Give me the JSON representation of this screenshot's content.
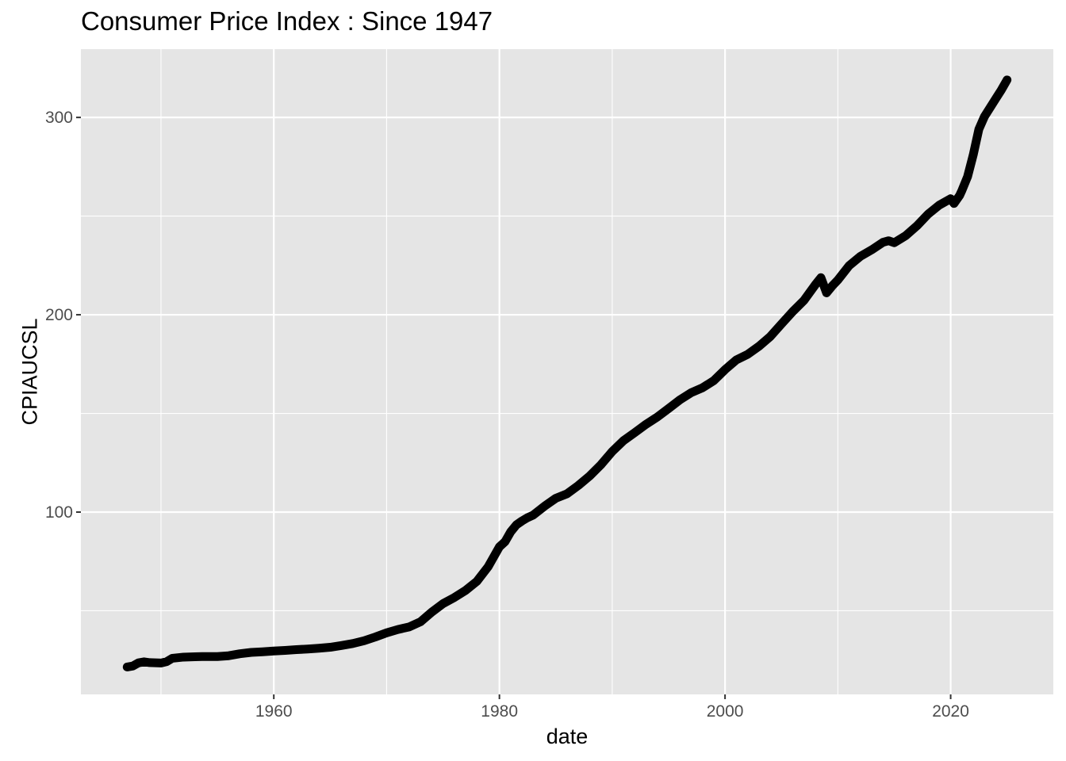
{
  "chart_data": {
    "type": "line",
    "title": "Consumer Price Index : Since 1947",
    "xlabel": "date",
    "ylabel": "CPIAUCSL",
    "xlim": [
      1942.9,
      2029.1
    ],
    "ylim": [
      7.6,
      334.6
    ],
    "x_major_ticks": [
      1960,
      1980,
      2000,
      2020
    ],
    "x_minor_ticks": [
      1950,
      1970,
      1990,
      2010
    ],
    "y_major_ticks": [
      100,
      200,
      300
    ],
    "y_minor_ticks": [
      50,
      150,
      250
    ],
    "x_tick_labels": [
      "1960",
      "1980",
      "2000",
      "2020"
    ],
    "y_tick_labels": [
      "100",
      "200",
      "300"
    ],
    "grid": true,
    "panel_background": "#e5e5e5",
    "grid_color": "#ffffff",
    "line_color": "#000000",
    "series": [
      {
        "x": [
          1947.0,
          1947.5,
          1948.0,
          1948.5,
          1949.0,
          1949.5,
          1950.0,
          1950.5,
          1951.0,
          1952.0,
          1953.0,
          1954.0,
          1955.0,
          1956.0,
          1957.0,
          1958.0,
          1959.0,
          1960.0,
          1961.0,
          1962.0,
          1963.0,
          1964.0,
          1965.0,
          1966.0,
          1967.0,
          1968.0,
          1969.0,
          1970.0,
          1971.0,
          1972.0,
          1973.0,
          1974.0,
          1975.0,
          1976.0,
          1977.0,
          1978.0,
          1979.0,
          1980.0,
          1980.5,
          1981.0,
          1981.5,
          1982.0,
          1982.5,
          1983.0,
          1984.0,
          1985.0,
          1986.0,
          1987.0,
          1988.0,
          1989.0,
          1990.0,
          1991.0,
          1992.0,
          1993.0,
          1994.0,
          1995.0,
          1996.0,
          1997.0,
          1998.0,
          1999.0,
          2000.0,
          2001.0,
          2002.0,
          2003.0,
          2004.0,
          2005.0,
          2006.0,
          2007.0,
          2008.0,
          2008.5,
          2009.0,
          2009.5,
          2010.0,
          2011.0,
          2012.0,
          2013.0,
          2014.0,
          2014.5,
          2015.0,
          2016.0,
          2017.0,
          2018.0,
          2019.0,
          2020.0,
          2020.3,
          2020.8,
          2021.0,
          2021.5,
          2022.0,
          2022.5,
          2023.0,
          2023.5,
          2024.0,
          2024.5,
          2025.0
        ],
        "values": [
          21.5,
          22.0,
          23.6,
          24.1,
          23.7,
          23.6,
          23.5,
          24.2,
          25.9,
          26.5,
          26.7,
          26.8,
          26.8,
          27.2,
          28.2,
          28.9,
          29.2,
          29.6,
          29.9,
          30.3,
          30.6,
          31.0,
          31.5,
          32.4,
          33.4,
          34.8,
          36.7,
          38.8,
          40.5,
          41.8,
          44.4,
          49.3,
          53.6,
          56.7,
          60.3,
          64.9,
          72.3,
          82.4,
          85.0,
          90.0,
          93.5,
          95.5,
          97.2,
          98.5,
          103.0,
          107.0,
          109.3,
          113.5,
          118.3,
          124.0,
          130.7,
          136.2,
          140.3,
          144.5,
          148.2,
          152.5,
          156.9,
          160.5,
          163.0,
          166.6,
          172.2,
          177.1,
          179.9,
          184.0,
          188.9,
          195.3,
          201.6,
          207.3,
          215.2,
          218.8,
          211.1,
          214.6,
          217.6,
          224.9,
          229.6,
          232.9,
          236.7,
          237.5,
          236.5,
          240.0,
          245.0,
          251.0,
          255.6,
          258.8,
          256.4,
          260.5,
          263.0,
          270.0,
          281.0,
          294.0,
          300.5,
          305.0,
          309.5,
          314.0,
          319.0
        ]
      }
    ]
  }
}
